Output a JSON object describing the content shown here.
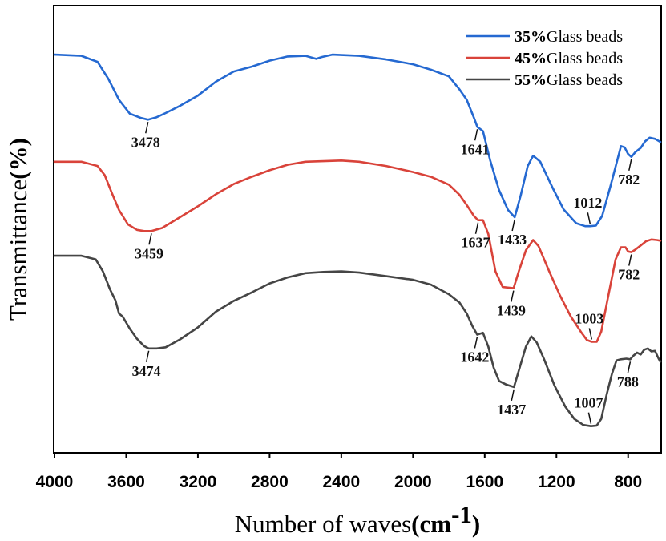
{
  "chart_data": {
    "type": "line",
    "title": "",
    "xlabel": "Number of waves",
    "xlabel_unit_prefix": "(",
    "xlabel_unit_base": "cm",
    "xlabel_unit_exp": "-1",
    "xlabel_unit_suffix": ")",
    "ylabel": "Transmittance",
    "ylabel_unit": "(%)",
    "x_reversed": true,
    "xlim": [
      4000,
      620
    ],
    "ylim": [
      -3.3,
      4.1
    ],
    "xticks": [
      4000,
      3600,
      3200,
      2800,
      2400,
      2000,
      1600,
      1200,
      800
    ],
    "xtick_labels": [
      "4000",
      "3600",
      "3200",
      "2800",
      "2400",
      "2000",
      "1600",
      "1200",
      "800"
    ],
    "legend_position": "top-right",
    "series": [
      {
        "name": "35%Glass beads",
        "legend_pct": "35%",
        "legend_rest": "Glass beads",
        "color": "#2569d1",
        "points": [
          [
            4000,
            3.3
          ],
          [
            3850,
            3.28
          ],
          [
            3760,
            3.18
          ],
          [
            3700,
            2.9
          ],
          [
            3640,
            2.55
          ],
          [
            3580,
            2.32
          ],
          [
            3520,
            2.25
          ],
          [
            3478,
            2.22
          ],
          [
            3430,
            2.26
          ],
          [
            3380,
            2.33
          ],
          [
            3300,
            2.45
          ],
          [
            3200,
            2.62
          ],
          [
            3100,
            2.85
          ],
          [
            3000,
            3.02
          ],
          [
            2900,
            3.1
          ],
          [
            2800,
            3.2
          ],
          [
            2700,
            3.27
          ],
          [
            2600,
            3.28
          ],
          [
            2540,
            3.23
          ],
          [
            2510,
            3.26
          ],
          [
            2450,
            3.3
          ],
          [
            2300,
            3.28
          ],
          [
            2150,
            3.22
          ],
          [
            2000,
            3.14
          ],
          [
            1900,
            3.05
          ],
          [
            1800,
            2.94
          ],
          [
            1740,
            2.72
          ],
          [
            1700,
            2.55
          ],
          [
            1660,
            2.25
          ],
          [
            1641,
            2.1
          ],
          [
            1610,
            2.03
          ],
          [
            1570,
            1.55
          ],
          [
            1520,
            1.05
          ],
          [
            1470,
            0.72
          ],
          [
            1433,
            0.6
          ],
          [
            1400,
            0.95
          ],
          [
            1360,
            1.45
          ],
          [
            1330,
            1.62
          ],
          [
            1290,
            1.52
          ],
          [
            1220,
            1.08
          ],
          [
            1160,
            0.73
          ],
          [
            1090,
            0.5
          ],
          [
            1040,
            0.45
          ],
          [
            1012,
            0.45
          ],
          [
            980,
            0.46
          ],
          [
            945,
            0.62
          ],
          [
            900,
            1.1
          ],
          [
            860,
            1.55
          ],
          [
            840,
            1.78
          ],
          [
            820,
            1.76
          ],
          [
            800,
            1.65
          ],
          [
            782,
            1.6
          ],
          [
            760,
            1.68
          ],
          [
            730,
            1.75
          ],
          [
            705,
            1.86
          ],
          [
            680,
            1.92
          ],
          [
            650,
            1.9
          ],
          [
            620,
            1.85
          ]
        ]
      },
      {
        "name": "45%Glass beads",
        "legend_pct": "45%",
        "legend_rest": "Glass beads",
        "color": "#d9433a",
        "points": [
          [
            4000,
            1.52
          ],
          [
            3850,
            1.52
          ],
          [
            3760,
            1.45
          ],
          [
            3720,
            1.3
          ],
          [
            3680,
            1.0
          ],
          [
            3640,
            0.72
          ],
          [
            3590,
            0.48
          ],
          [
            3540,
            0.39
          ],
          [
            3500,
            0.37
          ],
          [
            3459,
            0.37
          ],
          [
            3400,
            0.42
          ],
          [
            3300,
            0.6
          ],
          [
            3200,
            0.78
          ],
          [
            3100,
            0.98
          ],
          [
            3000,
            1.15
          ],
          [
            2900,
            1.27
          ],
          [
            2800,
            1.38
          ],
          [
            2700,
            1.47
          ],
          [
            2600,
            1.52
          ],
          [
            2500,
            1.53
          ],
          [
            2400,
            1.54
          ],
          [
            2300,
            1.52
          ],
          [
            2150,
            1.45
          ],
          [
            2000,
            1.35
          ],
          [
            1900,
            1.27
          ],
          [
            1800,
            1.14
          ],
          [
            1740,
            0.97
          ],
          [
            1700,
            0.8
          ],
          [
            1660,
            0.62
          ],
          [
            1637,
            0.55
          ],
          [
            1610,
            0.55
          ],
          [
            1580,
            0.32
          ],
          [
            1540,
            -0.3
          ],
          [
            1500,
            -0.56
          ],
          [
            1439,
            -0.58
          ],
          [
            1410,
            -0.3
          ],
          [
            1370,
            0.05
          ],
          [
            1330,
            0.22
          ],
          [
            1300,
            0.12
          ],
          [
            1240,
            -0.3
          ],
          [
            1180,
            -0.7
          ],
          [
            1120,
            -1.05
          ],
          [
            1060,
            -1.32
          ],
          [
            1030,
            -1.44
          ],
          [
            1003,
            -1.47
          ],
          [
            975,
            -1.47
          ],
          [
            950,
            -1.3
          ],
          [
            910,
            -0.7
          ],
          [
            870,
            -0.1
          ],
          [
            840,
            0.1
          ],
          [
            815,
            0.1
          ],
          [
            800,
            0.03
          ],
          [
            782,
            0.02
          ],
          [
            760,
            0.06
          ],
          [
            730,
            0.13
          ],
          [
            700,
            0.2
          ],
          [
            670,
            0.23
          ],
          [
            640,
            0.22
          ],
          [
            620,
            0.21
          ]
        ]
      },
      {
        "name": "55%Glass beads",
        "legend_pct": "55%",
        "legend_rest": "Glass beads",
        "color": "#454545",
        "points": [
          [
            4000,
            -0.04
          ],
          [
            3850,
            -0.04
          ],
          [
            3770,
            -0.1
          ],
          [
            3730,
            -0.3
          ],
          [
            3690,
            -0.6
          ],
          [
            3660,
            -0.78
          ],
          [
            3640,
            -1.0
          ],
          [
            3620,
            -1.05
          ],
          [
            3580,
            -1.25
          ],
          [
            3540,
            -1.42
          ],
          [
            3500,
            -1.54
          ],
          [
            3474,
            -1.58
          ],
          [
            3430,
            -1.58
          ],
          [
            3380,
            -1.56
          ],
          [
            3300,
            -1.43
          ],
          [
            3200,
            -1.23
          ],
          [
            3100,
            -0.97
          ],
          [
            3000,
            -0.79
          ],
          [
            2900,
            -0.65
          ],
          [
            2800,
            -0.5
          ],
          [
            2700,
            -0.4
          ],
          [
            2600,
            -0.33
          ],
          [
            2500,
            -0.31
          ],
          [
            2400,
            -0.3
          ],
          [
            2300,
            -0.32
          ],
          [
            2150,
            -0.38
          ],
          [
            2000,
            -0.44
          ],
          [
            1900,
            -0.52
          ],
          [
            1800,
            -0.68
          ],
          [
            1740,
            -0.82
          ],
          [
            1700,
            -1.0
          ],
          [
            1670,
            -1.2
          ],
          [
            1642,
            -1.35
          ],
          [
            1610,
            -1.32
          ],
          [
            1580,
            -1.55
          ],
          [
            1550,
            -1.9
          ],
          [
            1520,
            -2.12
          ],
          [
            1480,
            -2.18
          ],
          [
            1437,
            -2.22
          ],
          [
            1410,
            -1.95
          ],
          [
            1370,
            -1.55
          ],
          [
            1340,
            -1.38
          ],
          [
            1310,
            -1.48
          ],
          [
            1270,
            -1.75
          ],
          [
            1210,
            -2.2
          ],
          [
            1150,
            -2.55
          ],
          [
            1100,
            -2.75
          ],
          [
            1050,
            -2.85
          ],
          [
            1007,
            -2.87
          ],
          [
            975,
            -2.86
          ],
          [
            950,
            -2.75
          ],
          [
            920,
            -2.35
          ],
          [
            890,
            -2.0
          ],
          [
            865,
            -1.78
          ],
          [
            840,
            -1.76
          ],
          [
            810,
            -1.75
          ],
          [
            788,
            -1.76
          ],
          [
            770,
            -1.7
          ],
          [
            750,
            -1.65
          ],
          [
            730,
            -1.68
          ],
          [
            710,
            -1.6
          ],
          [
            690,
            -1.58
          ],
          [
            670,
            -1.63
          ],
          [
            650,
            -1.62
          ],
          [
            630,
            -1.75
          ],
          [
            620,
            -1.8
          ]
        ]
      }
    ],
    "annotations": [
      {
        "series": 0,
        "text": "3478",
        "x": 3478,
        "y": 2.22,
        "dir": "down"
      },
      {
        "series": 0,
        "text": "1641",
        "x": 1641,
        "y": 2.1,
        "dir": "down"
      },
      {
        "series": 0,
        "text": "1433",
        "x": 1433,
        "y": 0.6,
        "dir": "down"
      },
      {
        "series": 0,
        "text": "1012",
        "x": 1012,
        "y": 0.45,
        "dir": "up"
      },
      {
        "series": 0,
        "text": "782",
        "x": 782,
        "y": 1.6,
        "dir": "down"
      },
      {
        "series": 1,
        "text": "3459",
        "x": 3459,
        "y": 0.37,
        "dir": "down"
      },
      {
        "series": 1,
        "text": "1637",
        "x": 1637,
        "y": 0.55,
        "dir": "down"
      },
      {
        "series": 1,
        "text": "1439",
        "x": 1439,
        "y": -0.58,
        "dir": "down"
      },
      {
        "series": 1,
        "text": "1003",
        "x": 1003,
        "y": -1.47,
        "dir": "up"
      },
      {
        "series": 1,
        "text": "782",
        "x": 782,
        "y": 0.02,
        "dir": "down"
      },
      {
        "series": 2,
        "text": "3474",
        "x": 3474,
        "y": -1.58,
        "dir": "down"
      },
      {
        "series": 2,
        "text": "1642",
        "x": 1642,
        "y": -1.35,
        "dir": "down"
      },
      {
        "series": 2,
        "text": "1437",
        "x": 1437,
        "y": -2.22,
        "dir": "down"
      },
      {
        "series": 2,
        "text": "1007",
        "x": 1007,
        "y": -2.87,
        "dir": "up"
      },
      {
        "series": 2,
        "text": "788",
        "x": 788,
        "y": -1.76,
        "dir": "down"
      }
    ]
  }
}
